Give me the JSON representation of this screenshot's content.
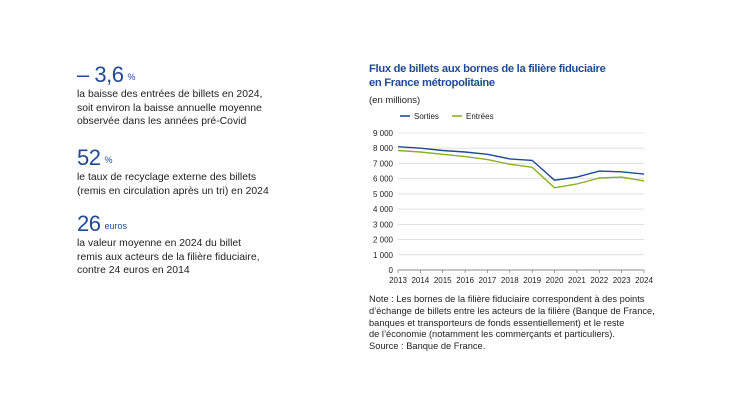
{
  "kpis": [
    {
      "value": "– 3,6",
      "unit": "%",
      "text": "la baisse des entrées de billets en 2024,\nsoit environ la baisse annuelle moyenne\nobservée dans les années pré-Covid"
    },
    {
      "value": "52",
      "unit": "%",
      "text": "le taux de recyclage externe des billets\n(remis en circulation après un tri) en 2024"
    },
    {
      "value": "26",
      "unit": "euros",
      "text": "la valeur moyenne en 2024 du billet\nremis aux acteurs de la filière fiduciaire,\ncontre 24 euros en 2014"
    }
  ],
  "chart_data": {
    "type": "line",
    "title_line1": "Flux de billets aux bornes de la filière fiduciaire",
    "title_line2": "en France métropolitaine",
    "unit_label": "(en millions)",
    "x": [
      "2013",
      "2014",
      "2015",
      "2016",
      "2017",
      "2018",
      "2019",
      "2020",
      "2021",
      "2022",
      "2023",
      "2024"
    ],
    "y_ticks": [
      "0",
      "1 000",
      "2 000",
      "3 000",
      "4 000",
      "5 000",
      "6 000",
      "7 000",
      "8 000",
      "9 000"
    ],
    "ylim": [
      0,
      9000
    ],
    "legend_position": "top-left",
    "series": [
      {
        "name": "Sorties",
        "color": "#1f4a96",
        "values": [
          8100,
          8000,
          7850,
          7750,
          7600,
          7300,
          7200,
          5900,
          6100,
          6500,
          6450,
          6300
        ]
      },
      {
        "name": "Entrées",
        "color": "#8ab21f",
        "values": [
          7850,
          7750,
          7600,
          7450,
          7250,
          6950,
          6750,
          5400,
          5650,
          6050,
          6100,
          5850
        ]
      }
    ],
    "grid": true
  },
  "note": {
    "lines": [
      "Note : Les bornes de la filière fiduciaire correspondent à des points",
      "d’échange de billets entre les acteurs de la filière (Banque de France,",
      "banques et transporteurs de fonds essentiellement) et le reste",
      "de l’économie (notamment les commerçants et particuliers).",
      "Source : Banque de France."
    ]
  }
}
